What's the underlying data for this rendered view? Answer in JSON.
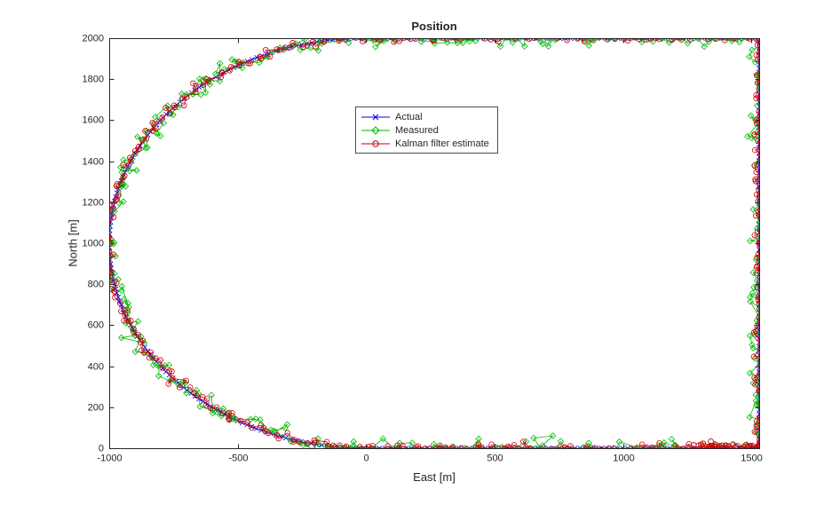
{
  "figure": {
    "background": "#ffffff"
  },
  "chart_data": {
    "type": "line",
    "title": "Position",
    "xlabel": "East [m]",
    "ylabel": "North [m]",
    "xlim": [
      -1000,
      1530
    ],
    "ylim": [
      0,
      2000
    ],
    "xticks": [
      -1000,
      -500,
      0,
      500,
      1000,
      1500
    ],
    "yticks": [
      0,
      200,
      400,
      600,
      800,
      1000,
      1200,
      1400,
      1600,
      1800,
      2000
    ],
    "grid": false,
    "axis_color": "#262626",
    "legend": {
      "position": "inside-upper-middle",
      "border_color": "#4d4d4d",
      "background": "#ffffff"
    },
    "series": [
      {
        "name": "Actual",
        "color": "#0000ee",
        "marker": "x",
        "marker_size": 2.6,
        "noise_std": 0,
        "seed": 101
      },
      {
        "name": "Measured",
        "color": "#00bb00",
        "marker": "diamond",
        "marker_size": 3.2,
        "noise_std": 24,
        "seed": 202
      },
      {
        "name": "Kalman filter estimate",
        "color": "#cc0000",
        "marker": "circle",
        "marker_size": 2.9,
        "noise_std": 11,
        "seed": 303
      }
    ],
    "trajectory": {
      "shape": "racetrack-loop",
      "description": "Closed loop: straight bottom at North=0, left semicircular arc of radius 1000 centered at (0,1000) passing through (-1000,1000), straight top at North=2000, straight right side at East=1530",
      "waypoints": [
        [
          1450,
          0
        ],
        [
          0,
          0
        ],
        [
          -1000,
          1000
        ],
        [
          0,
          2000
        ],
        [
          1530,
          2000
        ],
        [
          1530,
          0
        ],
        [
          1450,
          0
        ]
      ],
      "arc_center": [
        0,
        1000
      ],
      "arc_radius": 1000,
      "bottom_y": 0,
      "top_y": 2000,
      "right_x": 1530,
      "start": [
        1450,
        0
      ],
      "n_points": 400
    },
    "kalman_start_cluster": {
      "center": [
        1390,
        8
      ],
      "spread": [
        75,
        10
      ],
      "count": 48
    }
  }
}
